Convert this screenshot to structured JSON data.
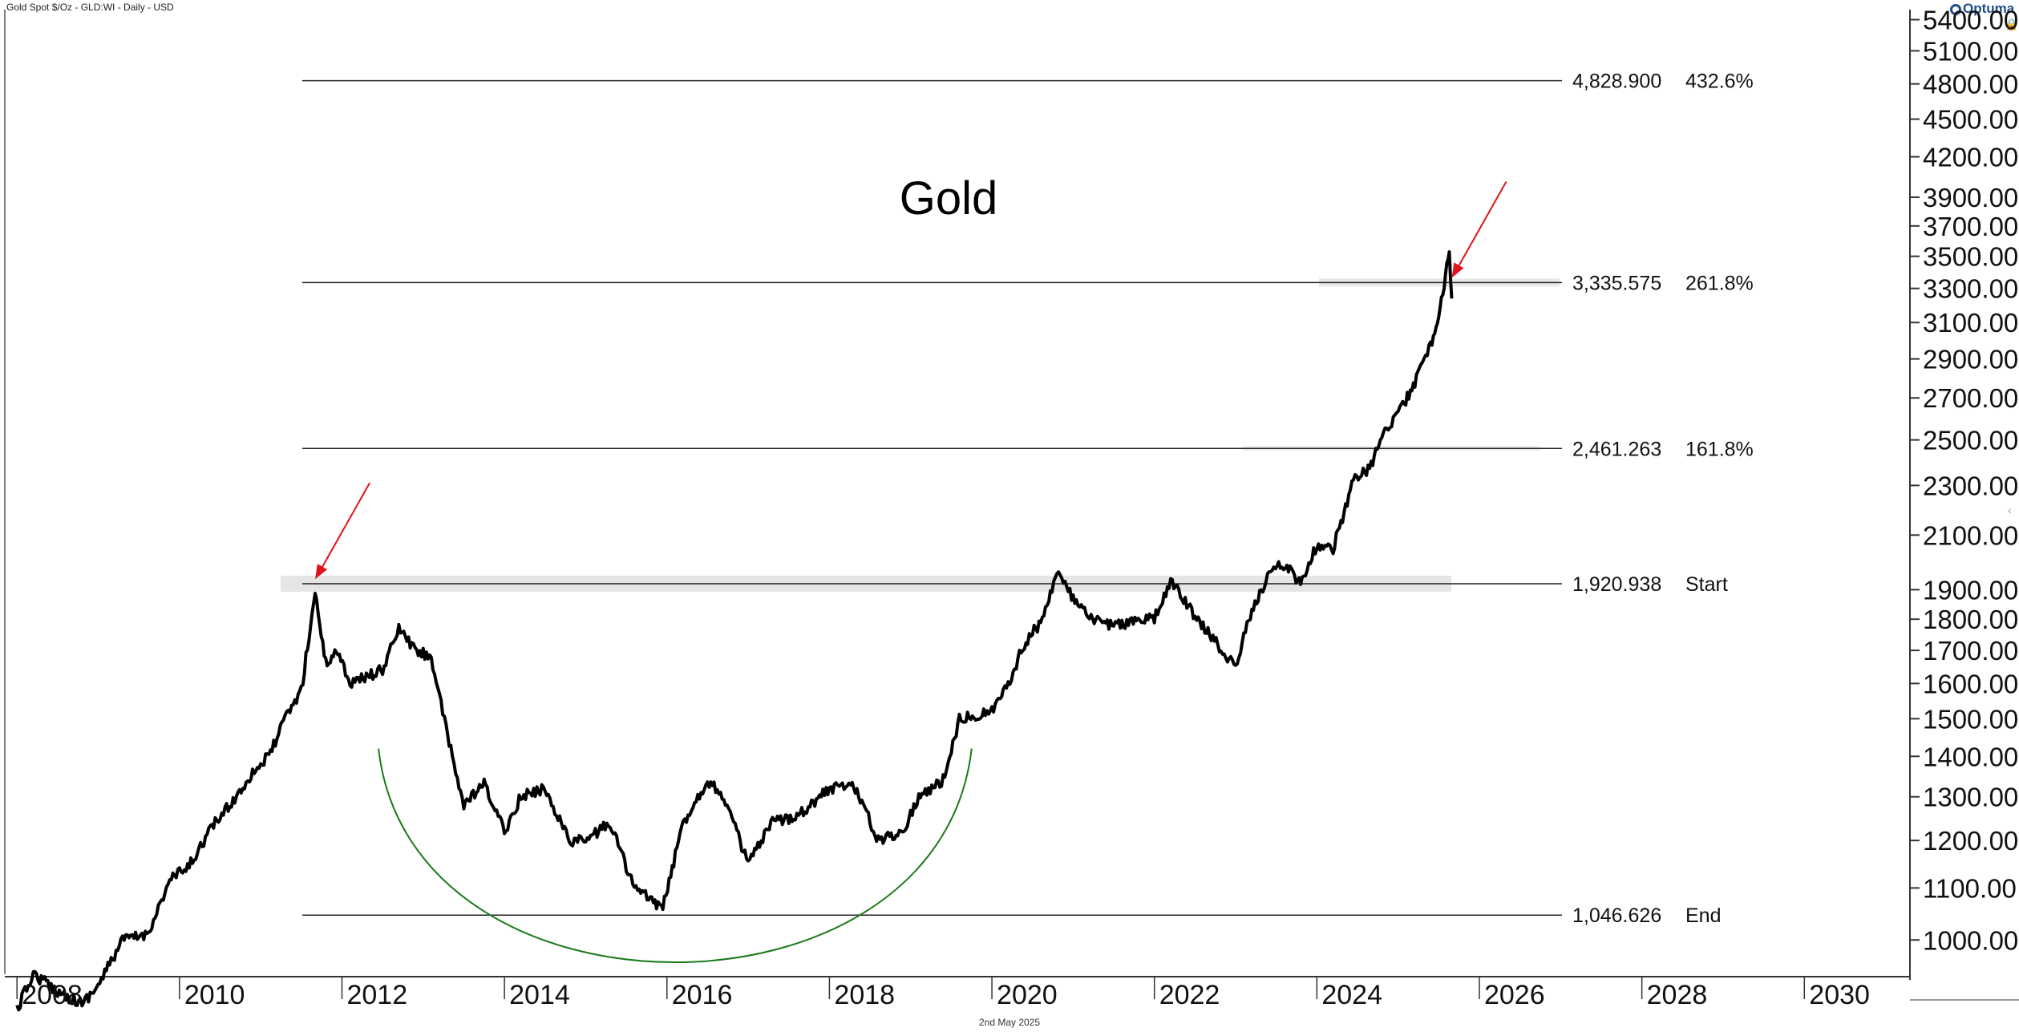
{
  "header": {
    "label": "Gold Spot $/Oz - GLD:WI - Daily - USD"
  },
  "logo": {
    "text": "Optuma"
  },
  "footer": {
    "date": "2nd May 2025"
  },
  "chart_data": {
    "type": "line",
    "title": "Gold",
    "xlabel": "",
    "ylabel": "",
    "scale": "log",
    "xlim": [
      2007.85,
      2031.3
    ],
    "ylim": [
      935,
      5500
    ],
    "yticks": [
      "5400.00",
      "5100.00",
      "4800.00",
      "4500.00",
      "4200.00",
      "3900.00",
      "3700.00",
      "3500.00",
      "3300.00",
      "3100.00",
      "2900.00",
      "2700.00",
      "2500.00",
      "2300.00",
      "2100.00",
      "1900.00",
      "1800.00",
      "1700.00",
      "1600.00",
      "1500.00",
      "1400.00",
      "1300.00",
      "1200.00",
      "1100.00",
      "1000.00"
    ],
    "xticks": [
      "2008",
      "2010",
      "2012",
      "2014",
      "2016",
      "2018",
      "2020",
      "2022",
      "2024",
      "2026",
      "2028",
      "2030"
    ],
    "series": [
      {
        "color": "#000000",
        "x": [
          2008.0,
          2008.2,
          2008.5,
          2008.8,
          2009.0,
          2009.3,
          2009.6,
          2009.9,
          2010.1,
          2010.4,
          2010.7,
          2010.9,
          2011.1,
          2011.3,
          2011.5,
          2011.67,
          2011.8,
          2011.95,
          2012.1,
          2012.3,
          2012.5,
          2012.7,
          2012.9,
          2013.1,
          2013.3,
          2013.5,
          2013.75,
          2014.0,
          2014.2,
          2014.5,
          2014.8,
          2015.0,
          2015.3,
          2015.6,
          2015.95,
          2016.2,
          2016.5,
          2016.7,
          2017.0,
          2017.3,
          2017.5,
          2017.7,
          2018.0,
          2018.3,
          2018.6,
          2018.9,
          2019.1,
          2019.4,
          2019.6,
          2019.8,
          2020.0,
          2020.2,
          2020.4,
          2020.6,
          2020.8,
          2021.0,
          2021.2,
          2021.5,
          2021.7,
          2021.9,
          2022.0,
          2022.2,
          2022.5,
          2022.8,
          2023.0,
          2023.2,
          2023.45,
          2023.65,
          2023.8,
          2024.0,
          2024.2,
          2024.45,
          2024.65,
          2024.8,
          2025.0,
          2025.15,
          2025.3,
          2025.4,
          2025.45,
          2025.5,
          2025.55,
          2025.6,
          2025.63,
          2025.66
        ],
        "values": [
          880,
          940,
          910,
          890,
          920,
          1000,
          1010,
          1120,
          1140,
          1230,
          1300,
          1360,
          1400,
          1500,
          1580,
          1890,
          1660,
          1700,
          1600,
          1620,
          1640,
          1770,
          1700,
          1680,
          1450,
          1280,
          1330,
          1220,
          1300,
          1320,
          1200,
          1200,
          1240,
          1100,
          1060,
          1240,
          1340,
          1300,
          1150,
          1240,
          1250,
          1270,
          1320,
          1330,
          1200,
          1220,
          1300,
          1340,
          1500,
          1510,
          1520,
          1600,
          1720,
          1790,
          1960,
          1870,
          1800,
          1780,
          1790,
          1800,
          1800,
          1930,
          1810,
          1710,
          1650,
          1830,
          1980,
          1980,
          1920,
          2060,
          2050,
          2320,
          2370,
          2510,
          2640,
          2720,
          2880,
          2970,
          3050,
          3150,
          3270,
          3430,
          3500,
          3240
        ]
      }
    ],
    "fib_levels": [
      {
        "price": 4828.9,
        "price_label": "4,828.900",
        "pct_label": "432.6%"
      },
      {
        "price": 3335.575,
        "price_label": "3,335.575",
        "pct_label": "261.8%"
      },
      {
        "price": 2461.263,
        "price_label": "2,461.263",
        "pct_label": "161.8%"
      },
      {
        "price": 1920.938,
        "price_label": "1,920.938",
        "pct_label": "Start"
      },
      {
        "price": 1046.626,
        "price_label": "1,046.626",
        "pct_label": "End"
      }
    ],
    "annotations": {
      "arrows_color": "#e0121b",
      "saucer_color": "#1a7a1a",
      "arrow_targets": [
        {
          "x": 2011.67,
          "y": 1920
        },
        {
          "x": 2025.66,
          "y": 3335
        }
      ],
      "saucer": {
        "x_start": 2012.45,
        "x_end": 2019.75,
        "x_mid": 2016.07,
        "y_top": 1420,
        "y_bottom": 1005
      }
    }
  }
}
